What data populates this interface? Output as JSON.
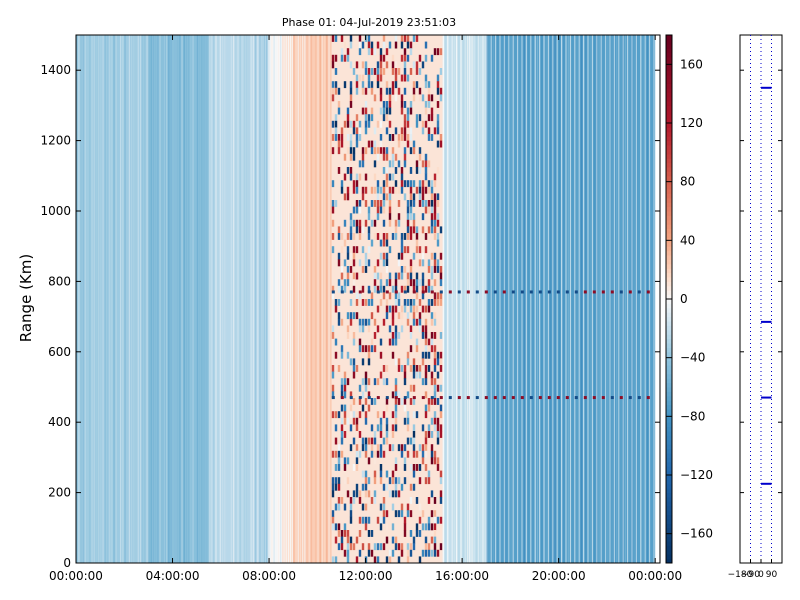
{
  "chart_data": [
    {
      "type": "heatmap",
      "title": "Phase 01: 04-Jul-2019 23:51:03",
      "ylabel": "Range (Km)",
      "xlabel": "",
      "x_tick_labels": [
        "00:00:00",
        "04:00:00",
        "08:00:00",
        "12:00:00",
        "16:00:00",
        "20:00:00",
        "00:00:00"
      ],
      "x_tick_hours": [
        0,
        4,
        8,
        12,
        16,
        20,
        24
      ],
      "xlim_hours": [
        0,
        24.2
      ],
      "ylim": [
        0,
        1500
      ],
      "y_ticks": [
        0,
        200,
        400,
        600,
        800,
        1000,
        1200,
        1400
      ],
      "colormap": "RdBu_r",
      "color_range": [
        -180,
        180
      ],
      "colorbar_ticks": [
        -160,
        -120,
        -80,
        -40,
        0,
        40,
        80,
        120,
        160
      ],
      "profile": [
        {
          "hour_start": 0,
          "hour_end": 3,
          "phase": -35
        },
        {
          "hour_start": 3,
          "hour_end": 5.5,
          "phase": -45
        },
        {
          "hour_start": 5.5,
          "hour_end": 8,
          "phase": -25
        },
        {
          "hour_start": 8,
          "hour_end": 9,
          "phase": 0
        },
        {
          "hour_start": 9,
          "hour_end": 10.6,
          "phase": 22
        },
        {
          "hour_start": 10.6,
          "hour_end": 15.2,
          "phase": "noisy"
        },
        {
          "hour_start": 15.2,
          "hour_end": 17,
          "phase": -20
        },
        {
          "hour_start": 17,
          "hour_end": 24,
          "phase": -70
        }
      ],
      "bright_lines_km": [
        470,
        770
      ]
    },
    {
      "type": "line",
      "xlim": [
        -180,
        180
      ],
      "ylim": [
        0,
        1500
      ],
      "x_tick_labels": [
        "−180",
        "−90",
        "0",
        "90"
      ],
      "x_ticks": [
        -180,
        -90,
        0,
        90
      ],
      "y_ticks": [
        0,
        200,
        400,
        600,
        800,
        1000,
        1200,
        1400
      ],
      "grid_x": [
        -90,
        0,
        90
      ],
      "markers_km": [
        225,
        470,
        685,
        1350
      ],
      "marker_x": [
        0,
        90
      ],
      "color": "#0000cc"
    }
  ]
}
